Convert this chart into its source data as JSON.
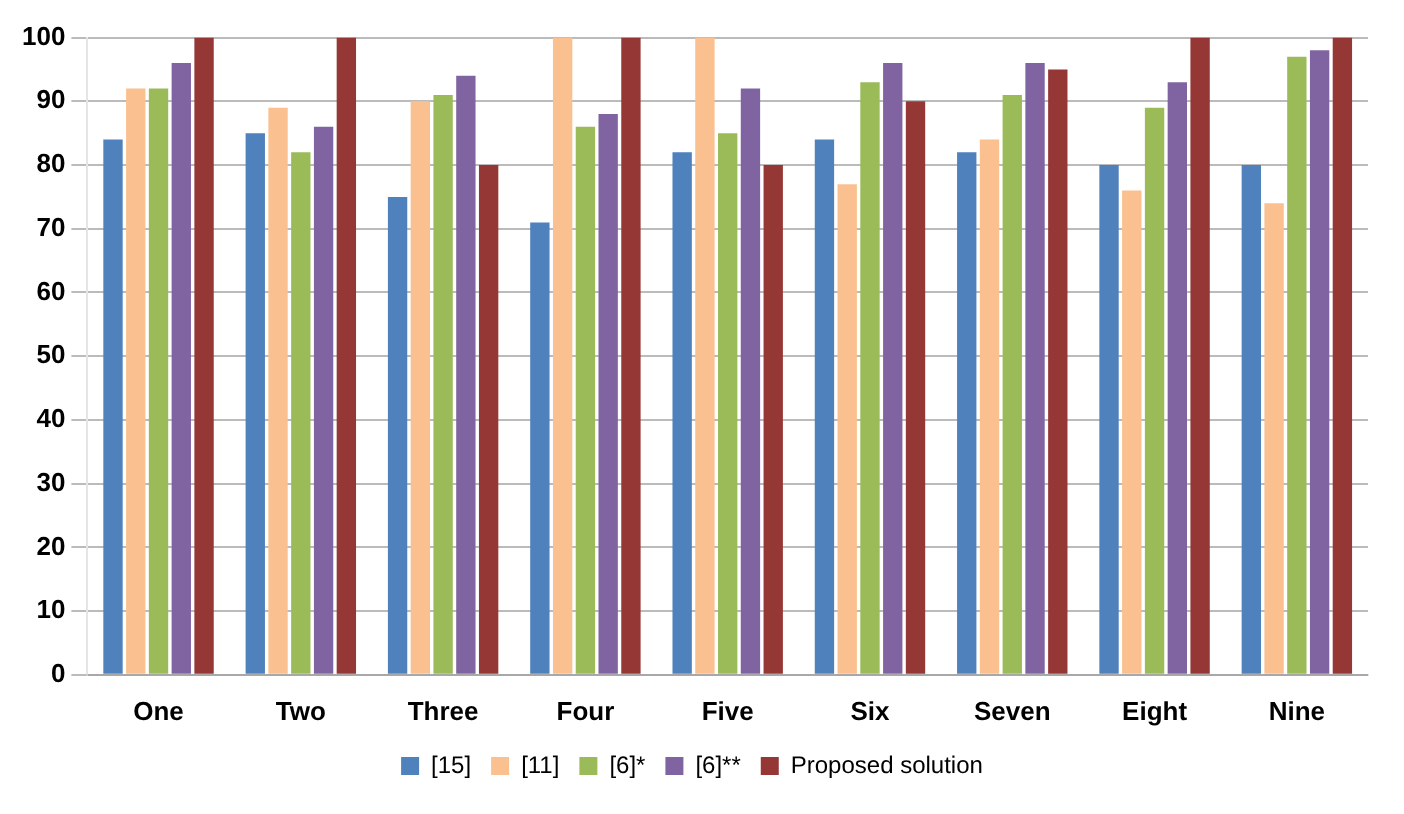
{
  "chart_data": {
    "type": "bar",
    "categories": [
      "One",
      "Two",
      "Three",
      "Four",
      "Five",
      "Six",
      "Seven",
      "Eight",
      "Nine"
    ],
    "series": [
      {
        "name": "[15]",
        "color": "#4f81bd",
        "values": [
          84,
          85,
          75,
          71,
          82,
          84,
          82,
          80,
          80
        ]
      },
      {
        "name": "[11]",
        "color": "#fac08f",
        "values": [
          92,
          89,
          90,
          100,
          100,
          77,
          84,
          76,
          74
        ]
      },
      {
        "name": "[6]*",
        "color": "#9bbb59",
        "values": [
          92,
          82,
          91,
          86,
          85,
          93,
          91,
          89,
          97
        ]
      },
      {
        "name": "[6]**",
        "color": "#8064a2",
        "values": [
          96,
          86,
          94,
          88,
          92,
          96,
          96,
          93,
          98
        ]
      },
      {
        "name": "Proposed solution",
        "color": "#953735",
        "values": [
          100,
          100,
          80,
          100,
          80,
          90,
          95,
          100,
          100
        ]
      }
    ],
    "ylim": [
      0,
      100
    ],
    "yticks": [
      0,
      10,
      20,
      30,
      40,
      50,
      60,
      70,
      80,
      90,
      100
    ],
    "grid": "y",
    "legend": "bottom"
  }
}
